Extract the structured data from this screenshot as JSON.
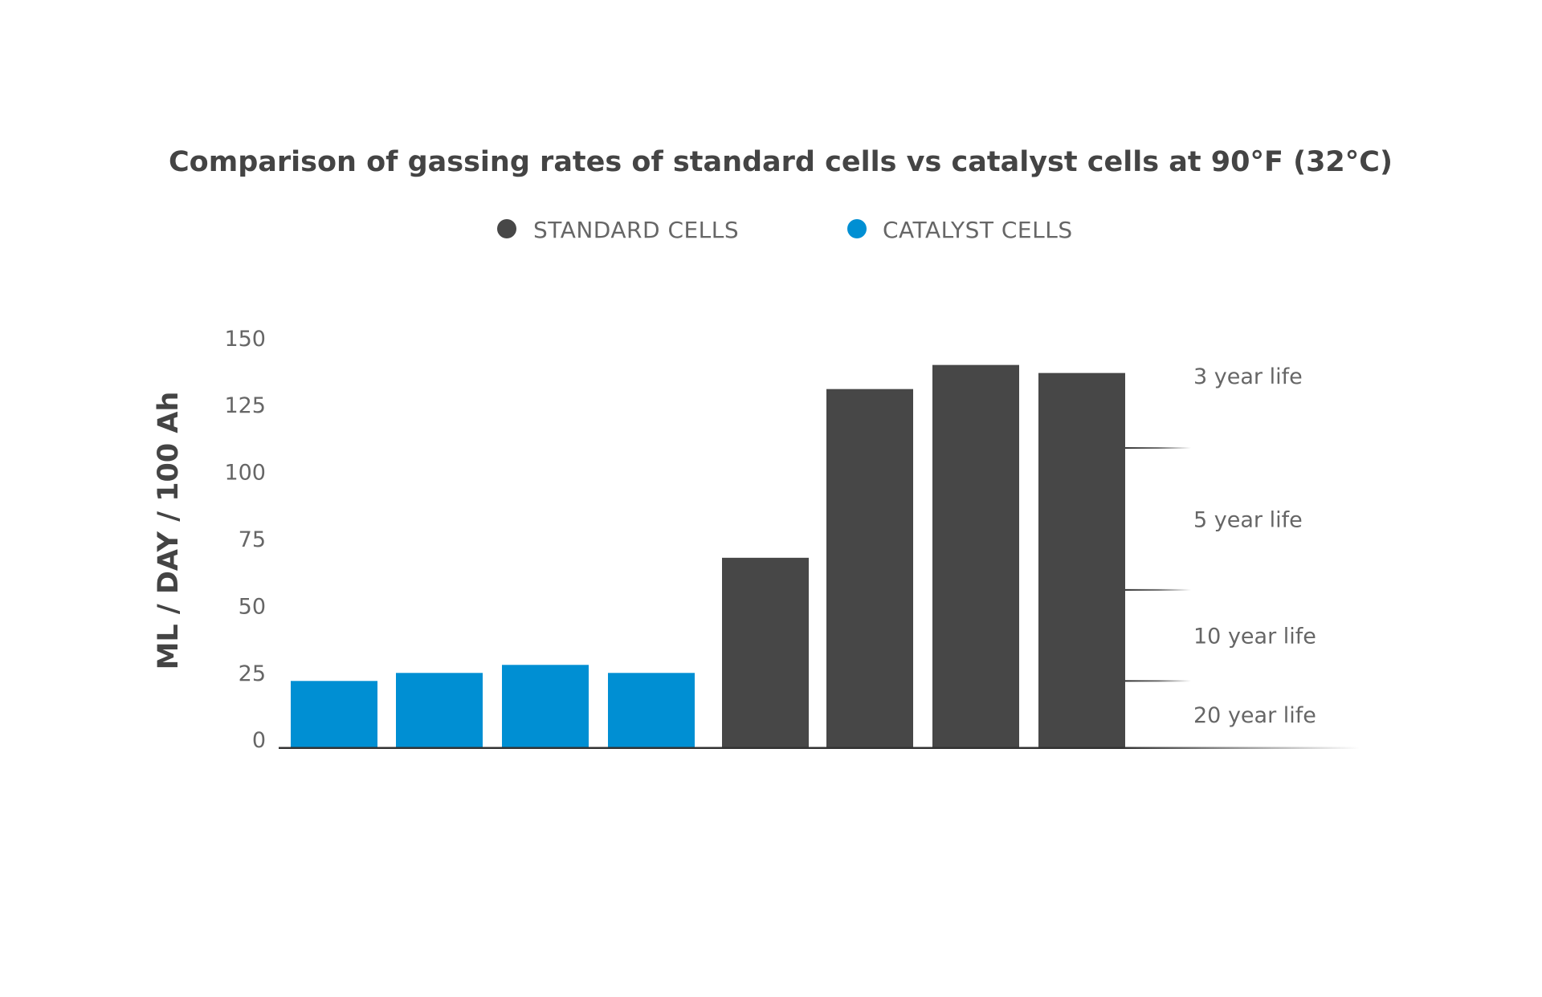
{
  "chart_data": {
    "type": "bar",
    "title": "Comparison of gassing rates of standard cells vs catalyst cells at 90°F (32°C)",
    "xlabel": "",
    "ylabel": "ML / DAY / 100 Ah",
    "ylim": [
      0,
      150
    ],
    "yticks": [
      0,
      25,
      50,
      75,
      100,
      125,
      150
    ],
    "grid": false,
    "legend": {
      "position": "top-center",
      "entries": [
        {
          "name": "STANDARD CELLS",
          "color": "#474747"
        },
        {
          "name": "CATALYST CELLS",
          "color": "#008fd3"
        }
      ]
    },
    "series": [
      {
        "name": "CATALYST CELLS",
        "color": "#008fd3",
        "values": [
          25,
          28,
          31,
          28
        ]
      },
      {
        "name": "STANDARD CELLS",
        "color": "#474747",
        "values": [
          71,
          134,
          143,
          140
        ]
      }
    ],
    "life_zones": [
      {
        "label": "3 year life",
        "from": 112,
        "to": 166
      },
      {
        "label": "5 year life",
        "from": 59,
        "to": 112
      },
      {
        "label": "10 year life",
        "from": 25,
        "to": 59
      },
      {
        "label": "20 year life",
        "from": 0,
        "to": 25
      }
    ],
    "zone_thresholds": [
      112,
      59,
      25
    ]
  },
  "colors": {
    "axis": "#333333",
    "title": "#444444",
    "text": "#666666"
  }
}
